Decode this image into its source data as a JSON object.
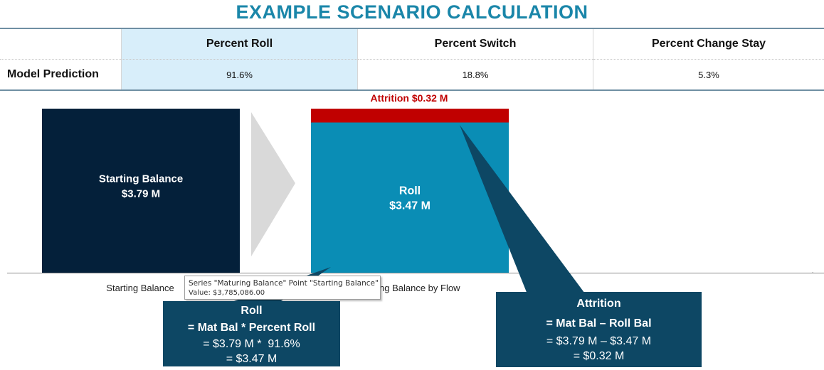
{
  "title": "EXAMPLE SCENARIO CALCULATION",
  "table": {
    "headers": [
      "Percent Roll",
      "Percent Switch",
      "Percent Change Stay"
    ],
    "row_label": "Model Prediction",
    "values": [
      "91.6%",
      "18.8%",
      "5.3%"
    ]
  },
  "colors": {
    "starting_balance": "#04203a",
    "roll": "#0a8db5",
    "attrition": "#c00000",
    "arrow": "#d9d9d9",
    "callout": "#0d4764",
    "title": "#1a86a9",
    "highlight": "#d8eefa"
  },
  "chart_data": {
    "type": "bar",
    "stacked": true,
    "categories": [
      "Starting Balance",
      "Maturing Balance by Flow"
    ],
    "series": [
      {
        "name": "Maturing Balance",
        "values": [
          3.79,
          0
        ]
      },
      {
        "name": "Roll",
        "values": [
          0,
          3.47
        ]
      },
      {
        "name": "Attrition",
        "values": [
          0,
          0.32
        ]
      }
    ],
    "units": "$M",
    "ylim": [
      0,
      3.79
    ],
    "data_labels": {
      "starting": [
        "Starting Balance",
        "$3.79 M"
      ],
      "roll": [
        "Roll",
        "$3.47 M"
      ],
      "attrition": "Attrition $0.32 M"
    },
    "tick_labels": [
      "Starting Balance",
      "ng Balance by Flow"
    ]
  },
  "tooltip": {
    "line1": "Series \"Maturing Balance\" Point \"Starting Balance\"",
    "line2": "Value: $3,785,086.00"
  },
  "callouts": {
    "roll": {
      "title": "Roll",
      "formula": "= Mat Bal * Percent Roll",
      "line1": "= $3.79 M *  91.6%",
      "line2": "= $3.47 M"
    },
    "attrition": {
      "title": "Attrition",
      "formula": "= Mat Bal – Roll Bal",
      "line1": "= $3.79 M – $3.47 M",
      "line2": "= $0.32 M"
    }
  }
}
